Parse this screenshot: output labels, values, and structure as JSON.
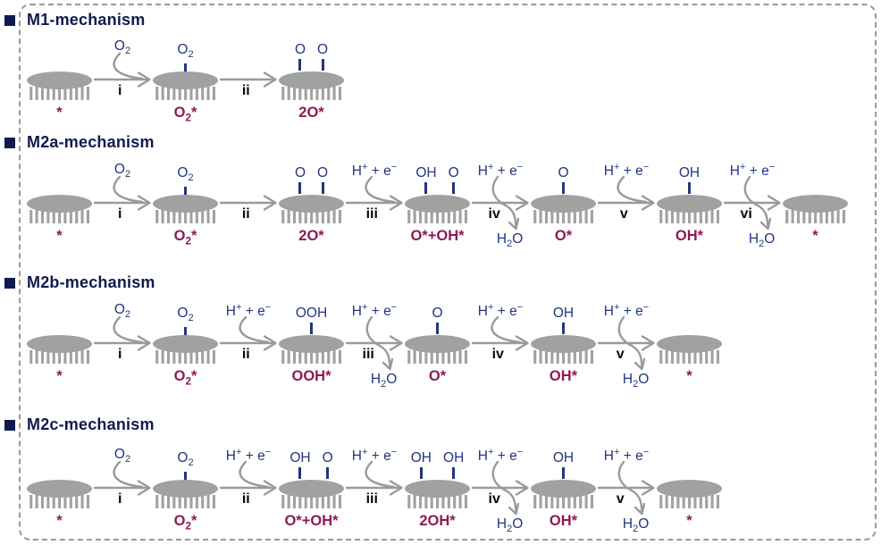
{
  "colors": {
    "header_navy": "#101a4f",
    "species_blue": "#233580",
    "label_maroon": "#8e1a52",
    "surface_gray": "#a1a1a1",
    "arrow_gray": "#9a9a9a",
    "step_black": "#0b0b0b",
    "frame_gray": "#999999"
  },
  "mechanisms": [
    {
      "title": "M1-mechanism",
      "steps": [
        {
          "kind": "surface",
          "adsorbates": [],
          "label": "*"
        },
        {
          "kind": "arrow",
          "step": "i",
          "reactant": "O_2"
        },
        {
          "kind": "surface",
          "adsorbates": [
            "O_2"
          ],
          "label": "O_2*"
        },
        {
          "kind": "arrow",
          "step": "ii"
        },
        {
          "kind": "surface",
          "adsorbates": [
            "O",
            "O"
          ],
          "label": "2O*"
        }
      ]
    },
    {
      "title": "M2a-mechanism",
      "steps": [
        {
          "kind": "surface",
          "adsorbates": [],
          "label": "*"
        },
        {
          "kind": "arrow",
          "step": "i",
          "reactant": "O_2"
        },
        {
          "kind": "surface",
          "adsorbates": [
            "O_2"
          ],
          "label": "O_2*"
        },
        {
          "kind": "arrow",
          "step": "ii"
        },
        {
          "kind": "surface",
          "adsorbates": [
            "O",
            "O"
          ],
          "label": "2O*"
        },
        {
          "kind": "arrow",
          "step": "iii",
          "reactant": "H^+ + e^−"
        },
        {
          "kind": "surface",
          "adsorbates": [
            "OH",
            "O"
          ],
          "label": "O*+OH*"
        },
        {
          "kind": "arrow",
          "step": "iv",
          "reactant": "H^+ + e^−",
          "product": "H_2O"
        },
        {
          "kind": "surface",
          "adsorbates": [
            "O"
          ],
          "label": "O*"
        },
        {
          "kind": "arrow",
          "step": "v",
          "reactant": "H^+ + e^−"
        },
        {
          "kind": "surface",
          "adsorbates": [
            "OH"
          ],
          "label": "OH*"
        },
        {
          "kind": "arrow",
          "step": "vi",
          "reactant": "H^+ + e^−",
          "product": "H_2O"
        },
        {
          "kind": "surface",
          "adsorbates": [],
          "label": "*"
        }
      ]
    },
    {
      "title": "M2b-mechanism",
      "steps": [
        {
          "kind": "surface",
          "adsorbates": [],
          "label": "*"
        },
        {
          "kind": "arrow",
          "step": "i",
          "reactant": "O_2"
        },
        {
          "kind": "surface",
          "adsorbates": [
            "O_2"
          ],
          "label": "O_2*"
        },
        {
          "kind": "arrow",
          "step": "ii",
          "reactant": "H^+ + e^−"
        },
        {
          "kind": "surface",
          "adsorbates": [
            "OOH"
          ],
          "label": "OOH*"
        },
        {
          "kind": "arrow",
          "step": "iii",
          "reactant": "H^+ + e^−",
          "product": "H_2O"
        },
        {
          "kind": "surface",
          "adsorbates": [
            "O"
          ],
          "label": "O*"
        },
        {
          "kind": "arrow",
          "step": "iv",
          "reactant": "H^+ + e^−"
        },
        {
          "kind": "surface",
          "adsorbates": [
            "OH"
          ],
          "label": "OH*"
        },
        {
          "kind": "arrow",
          "step": "v",
          "reactant": "H^+ + e^−",
          "product": "H_2O"
        },
        {
          "kind": "surface",
          "adsorbates": [],
          "label": "*"
        }
      ]
    },
    {
      "title": "M2c-mechanism",
      "steps": [
        {
          "kind": "surface",
          "adsorbates": [],
          "label": "*"
        },
        {
          "kind": "arrow",
          "step": "i",
          "reactant": "O_2"
        },
        {
          "kind": "surface",
          "adsorbates": [
            "O_2"
          ],
          "label": "O_2*"
        },
        {
          "kind": "arrow",
          "step": "ii",
          "reactant": "H^+ + e^−"
        },
        {
          "kind": "surface",
          "adsorbates": [
            "OH",
            "O"
          ],
          "label": "O*+OH*"
        },
        {
          "kind": "arrow",
          "step": "iii",
          "reactant": "H^+ + e^−"
        },
        {
          "kind": "surface",
          "adsorbates": [
            "OH",
            "OH"
          ],
          "label": "2OH*"
        },
        {
          "kind": "arrow",
          "step": "iv",
          "reactant": "H^+ + e^−",
          "product": "H_2O"
        },
        {
          "kind": "surface",
          "adsorbates": [
            "OH"
          ],
          "label": "OH*"
        },
        {
          "kind": "arrow",
          "step": "v",
          "reactant": "H^+ + e^−",
          "product": "H_2O"
        },
        {
          "kind": "surface",
          "adsorbates": [],
          "label": "*"
        }
      ]
    }
  ]
}
